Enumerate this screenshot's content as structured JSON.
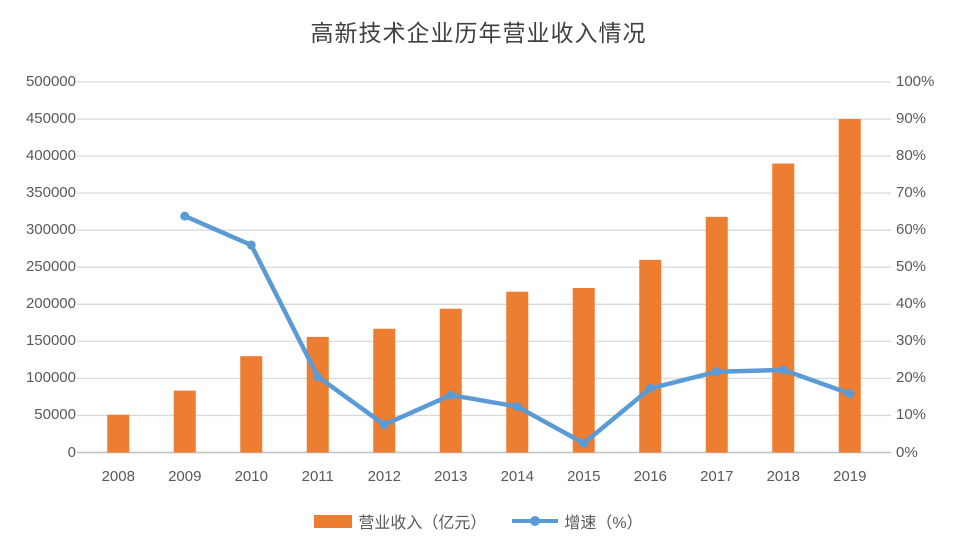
{
  "chart_data": {
    "type": "combo",
    "title": "高新技术企业历年营业收入情况",
    "categories": [
      "2008",
      "2009",
      "2010",
      "2011",
      "2012",
      "2013",
      "2014",
      "2015",
      "2016",
      "2017",
      "2018",
      "2019"
    ],
    "series": [
      {
        "name": "营业收入（亿元）",
        "type": "bar",
        "axis": "left",
        "color": "#ED7D31",
        "values": [
          51000,
          83500,
          130000,
          156000,
          167000,
          194000,
          217000,
          222000,
          260000,
          318000,
          390000,
          450000
        ]
      },
      {
        "name": "增速（%）",
        "type": "line",
        "axis": "right",
        "color": "#5B9BD5",
        "values": [
          null,
          63.8,
          56.0,
          20.5,
          7.5,
          15.5,
          12.4,
          2.5,
          17.3,
          21.8,
          22.3,
          15.9
        ]
      }
    ],
    "left_axis": {
      "min": 0,
      "max": 500000,
      "step": 50000,
      "tick_labels": [
        "0",
        "50000",
        "100000",
        "150000",
        "200000",
        "250000",
        "300000",
        "350000",
        "400000",
        "450000",
        "500000"
      ]
    },
    "right_axis": {
      "min": 0,
      "max": 100,
      "step": 10,
      "tick_labels": [
        "0%",
        "10%",
        "20%",
        "30%",
        "40%",
        "50%",
        "60%",
        "70%",
        "80%",
        "90%",
        "100%"
      ]
    },
    "grid": true,
    "legend_position": "bottom",
    "colors": {
      "grid": "#D9D9D9",
      "axis_line": "#BFBFBF",
      "text": "#595959",
      "title": "#404040",
      "background": "#FFFFFF"
    }
  }
}
